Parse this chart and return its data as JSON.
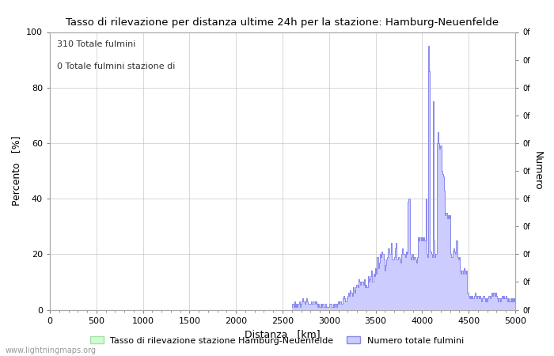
{
  "title": "Tasso di rilevazione per distanza ultime 24h per la stazione: Hamburg-Neuenfelde",
  "xlabel": "Distanza   [km]",
  "ylabel_left": "Percento   [%]",
  "ylabel_right": "Numero",
  "annotation_line1": "310 Totale fulmini",
  "annotation_line2": "0 Totale fulmini stazione di",
  "xlim": [
    0,
    5000
  ],
  "ylim": [
    0,
    100
  ],
  "xticks": [
    0,
    500,
    1000,
    1500,
    2000,
    2500,
    3000,
    3500,
    4000,
    4500,
    5000
  ],
  "yticks_left": [
    0,
    20,
    40,
    60,
    80,
    100
  ],
  "legend_label_green": "Tasso di rilevazione stazione Hamburg-Neuenfelde",
  "legend_label_blue": "Numero totale fulmini",
  "watermark": "www.lightningmaps.org",
  "bg_color": "#ffffff",
  "plot_bg_color": "#ffffff",
  "grid_color": "#bbbbbb",
  "line_color": "#8888ee",
  "fill_color": "#ccccff",
  "green_fill_color": "#ccffcc",
  "green_line_color": "#aaddaa",
  "lightning_x": [
    2600,
    2610,
    2620,
    2630,
    2640,
    2650,
    2660,
    2670,
    2680,
    2690,
    2700,
    2710,
    2720,
    2730,
    2740,
    2750,
    2760,
    2770,
    2780,
    2790,
    2800,
    2810,
    2820,
    2830,
    2840,
    2850,
    2860,
    2870,
    2880,
    2890,
    2900,
    2910,
    2920,
    2930,
    2940,
    2950,
    2960,
    2970,
    2980,
    2990,
    3000,
    3010,
    3020,
    3030,
    3040,
    3050,
    3060,
    3070,
    3080,
    3090,
    3100,
    3110,
    3120,
    3130,
    3140,
    3150,
    3160,
    3170,
    3180,
    3190,
    3200,
    3210,
    3220,
    3230,
    3240,
    3250,
    3260,
    3270,
    3280,
    3290,
    3300,
    3310,
    3320,
    3330,
    3340,
    3350,
    3360,
    3370,
    3380,
    3390,
    3400,
    3410,
    3420,
    3430,
    3440,
    3450,
    3460,
    3470,
    3480,
    3490,
    3500,
    3510,
    3520,
    3530,
    3540,
    3550,
    3560,
    3570,
    3580,
    3590,
    3600,
    3610,
    3620,
    3630,
    3640,
    3650,
    3660,
    3670,
    3680,
    3690,
    3700,
    3710,
    3720,
    3730,
    3740,
    3750,
    3760,
    3770,
    3780,
    3790,
    3800,
    3810,
    3820,
    3830,
    3840,
    3850,
    3860,
    3870,
    3880,
    3890,
    3900,
    3910,
    3920,
    3930,
    3940,
    3950,
    3960,
    3970,
    3980,
    3990,
    4000,
    4010,
    4020,
    4030,
    4040,
    4050,
    4060,
    4070,
    4080,
    4090,
    4100,
    4110,
    4120,
    4130,
    4140,
    4150,
    4160,
    4170,
    4180,
    4190,
    4200,
    4210,
    4220,
    4230,
    4240,
    4250,
    4260,
    4270,
    4280,
    4290,
    4300,
    4310,
    4320,
    4330,
    4340,
    4350,
    4360,
    4370,
    4380,
    4390,
    4400,
    4410,
    4420,
    4430,
    4440,
    4450,
    4460,
    4470,
    4480,
    4490,
    4500,
    4510,
    4520,
    4530,
    4540,
    4550,
    4560,
    4570,
    4580,
    4590,
    4600,
    4610,
    4620,
    4630,
    4640,
    4650,
    4660,
    4670,
    4680,
    4690,
    4700,
    4710,
    4720,
    4730,
    4740,
    4750,
    4760,
    4770,
    4780,
    4790,
    4800,
    4810,
    4820,
    4830,
    4840,
    4850,
    4860,
    4870,
    4880,
    4890,
    4900,
    4910,
    4920,
    4930,
    4940,
    4950,
    4960,
    4970,
    4980,
    4990,
    5000
  ],
  "lightning_y": [
    1,
    2,
    1,
    3,
    1,
    2,
    1,
    2,
    3,
    1,
    2,
    3,
    4,
    3,
    2,
    3,
    4,
    3,
    2,
    2,
    2,
    3,
    2,
    2,
    3,
    2,
    3,
    2,
    1,
    2,
    1,
    2,
    1,
    2,
    2,
    1,
    2,
    1,
    1,
    1,
    1,
    2,
    2,
    1,
    1,
    2,
    1,
    2,
    1,
    2,
    3,
    2,
    3,
    2,
    2,
    4,
    5,
    4,
    3,
    4,
    5,
    6,
    5,
    7,
    6,
    5,
    8,
    7,
    6,
    8,
    9,
    8,
    11,
    10,
    9,
    10,
    10,
    9,
    11,
    8,
    9,
    8,
    12,
    10,
    11,
    12,
    14,
    10,
    13,
    12,
    15,
    13,
    19,
    15,
    17,
    20,
    19,
    21,
    20,
    18,
    14,
    16,
    18,
    19,
    22,
    20,
    20,
    24,
    18,
    18,
    19,
    22,
    24,
    18,
    18,
    19,
    18,
    17,
    20,
    22,
    20,
    20,
    19,
    21,
    20,
    39,
    40,
    20,
    18,
    19,
    20,
    18,
    19,
    18,
    17,
    19,
    26,
    25,
    26,
    25,
    26,
    25,
    26,
    25,
    40,
    20,
    19,
    95,
    86,
    21,
    20,
    19,
    75,
    25,
    19,
    20,
    60,
    64,
    60,
    58,
    59,
    50,
    49,
    48,
    43,
    34,
    35,
    33,
    34,
    33,
    34,
    20,
    19,
    21,
    22,
    21,
    20,
    25,
    19,
    18,
    19,
    14,
    13,
    14,
    13,
    15,
    14,
    13,
    14,
    6,
    5,
    4,
    5,
    4,
    5,
    4,
    5,
    6,
    5,
    4,
    5,
    4,
    5,
    4,
    3,
    4,
    5,
    4,
    3,
    4,
    3,
    4,
    5,
    4,
    5,
    6,
    5,
    6,
    5,
    6,
    5,
    4,
    3,
    4,
    3,
    4,
    5,
    4,
    5,
    4,
    5,
    4,
    3,
    4,
    3,
    4,
    3,
    4,
    3,
    4,
    3
  ]
}
